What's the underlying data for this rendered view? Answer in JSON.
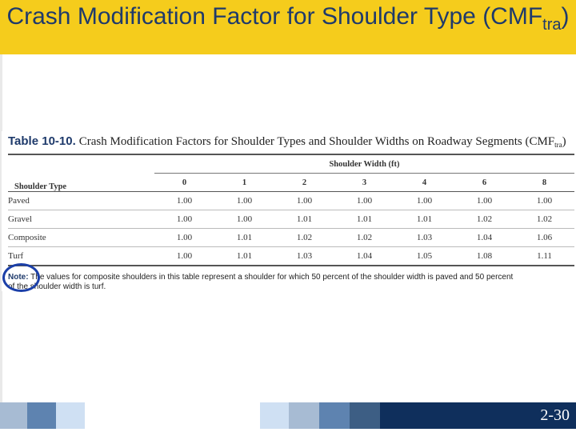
{
  "slide": {
    "title_main": "Crash Modification Factor for Shoulder Type (CMF",
    "title_sub": "tra",
    "title_close": ")",
    "page_number": "2-30"
  },
  "table": {
    "number": "Table 10-10.",
    "caption": "Crash Modification Factors for Shoulder Types and Shoulder Widths on Roadway Segments (CMF",
    "caption_sub": "tra",
    "caption_close": ")",
    "group_header": "Shoulder Width (ft)",
    "type_header": "Shoulder Type",
    "widths": [
      "0",
      "1",
      "2",
      "3",
      "4",
      "6",
      "8"
    ],
    "rows": [
      {
        "type": "Paved",
        "values": [
          "1.00",
          "1.00",
          "1.00",
          "1.00",
          "1.00",
          "1.00",
          "1.00"
        ]
      },
      {
        "type": "Gravel",
        "values": [
          "1.00",
          "1.00",
          "1.01",
          "1.01",
          "1.01",
          "1.02",
          "1.02"
        ]
      },
      {
        "type": "Composite",
        "values": [
          "1.00",
          "1.01",
          "1.02",
          "1.02",
          "1.03",
          "1.04",
          "1.06"
        ]
      },
      {
        "type": "Turf",
        "values": [
          "1.00",
          "1.01",
          "1.03",
          "1.04",
          "1.05",
          "1.08",
          "1.11"
        ]
      }
    ],
    "note_label": "Note:",
    "note_line1": "The values for composite shoulders in this table represent a shoulder for which 50 percent of the shoulder width is paved and 50 percent",
    "note_line2": "of the shoulder width is turf."
  },
  "colors": {
    "title_band": "#f5cc1c",
    "title_text": "#1f3a6b",
    "highlight_circle": "#1b3fa8",
    "footer_blocks": [
      "#a7bbd3",
      "#5e83b0",
      "#cfe0f3",
      "#ffffff",
      "#cfe0f3",
      "#a7bbd3",
      "#5e83b0",
      "#3d5e84",
      "#0f2f5c"
    ]
  }
}
